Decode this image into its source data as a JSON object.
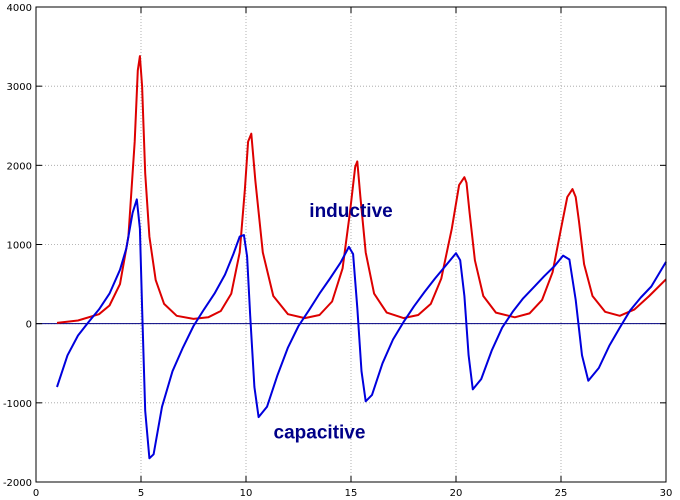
{
  "chart_data": {
    "type": "line",
    "title": "",
    "xlabel": "",
    "ylabel": "",
    "xlim": [
      0,
      30
    ],
    "ylim": [
      -2000,
      4000
    ],
    "grid": true,
    "x_ticks": [
      0,
      5,
      10,
      15,
      20,
      25,
      30
    ],
    "y_ticks": [
      -2000,
      -1000,
      0,
      1000,
      2000,
      3000,
      4000
    ],
    "x_tick_labels": [
      "0",
      "5",
      "10",
      "15",
      "20",
      "25",
      "30"
    ],
    "y_tick_labels": [
      "-2000",
      "-1000",
      "0",
      "1000",
      "2000",
      "3000",
      "4000"
    ],
    "annotations": [
      {
        "text": "inductive",
        "x": 15,
        "y": 1350
      },
      {
        "text": "capacitive",
        "x": 13.5,
        "y": -1450
      }
    ],
    "zero_line": {
      "y": 0,
      "color": "#000080"
    },
    "series": [
      {
        "color": "#dd0000",
        "x": [
          1,
          2,
          3,
          3.5,
          4,
          4.4,
          4.7,
          4.85,
          4.95,
          5.05,
          5.2,
          5.4,
          5.7,
          6.1,
          6.7,
          7.5,
          8.2,
          8.8,
          9.3,
          9.7,
          9.95,
          10.1,
          10.25,
          10.45,
          10.8,
          11.3,
          12,
          12.8,
          13.5,
          14.1,
          14.6,
          14.95,
          15.2,
          15.3,
          15.45,
          15.7,
          16.1,
          16.7,
          17.5,
          18.2,
          18.8,
          19.3,
          19.8,
          20.15,
          20.4,
          20.5,
          20.65,
          20.9,
          21.3,
          21.9,
          22.8,
          23.5,
          24.1,
          24.6,
          25,
          25.3,
          25.55,
          25.7,
          25.85,
          26.1,
          26.5,
          27.1,
          27.8,
          28.5,
          29.2,
          30
        ],
        "y": [
          10,
          40,
          120,
          230,
          500,
          1100,
          2300,
          3200,
          3380,
          3000,
          1900,
          1100,
          550,
          250,
          100,
          60,
          80,
          160,
          380,
          900,
          1700,
          2300,
          2400,
          1800,
          900,
          350,
          120,
          70,
          110,
          280,
          700,
          1400,
          1980,
          2050,
          1600,
          900,
          380,
          140,
          70,
          110,
          250,
          570,
          1200,
          1750,
          1850,
          1780,
          1400,
          800,
          350,
          140,
          80,
          130,
          300,
          650,
          1200,
          1600,
          1700,
          1600,
          1300,
          750,
          350,
          150,
          100,
          180,
          350,
          560
        ]
      },
      {
        "color": "#0000dd",
        "x": [
          1,
          1.5,
          2,
          2.5,
          3,
          3.5,
          4,
          4.3,
          4.6,
          4.8,
          4.95,
          5.05,
          5.2,
          5.4,
          5.6,
          6,
          6.5,
          7,
          7.5,
          8,
          8.5,
          9,
          9.4,
          9.7,
          9.9,
          10.05,
          10.2,
          10.4,
          10.6,
          11,
          11.5,
          12,
          12.5,
          13,
          13.5,
          14,
          14.5,
          14.9,
          15.1,
          15.3,
          15.5,
          15.7,
          16,
          16.5,
          17,
          17.5,
          18,
          18.5,
          19,
          19.5,
          20,
          20.2,
          20.4,
          20.6,
          20.8,
          21.2,
          21.7,
          22.2,
          22.7,
          23.2,
          23.7,
          24.2,
          24.7,
          25.1,
          25.4,
          25.7,
          26,
          26.3,
          26.8,
          27.3,
          27.8,
          28.3,
          28.8,
          29.3,
          30
        ],
        "y": [
          -800,
          -400,
          -150,
          20,
          180,
          380,
          680,
          950,
          1400,
          1570,
          1200,
          200,
          -1100,
          -1700,
          -1650,
          -1050,
          -600,
          -300,
          -30,
          180,
          380,
          620,
          880,
          1100,
          1120,
          850,
          100,
          -800,
          -1180,
          -1050,
          -650,
          -300,
          -30,
          170,
          380,
          570,
          770,
          970,
          880,
          200,
          -600,
          -980,
          -900,
          -500,
          -200,
          20,
          220,
          400,
          570,
          730,
          890,
          800,
          350,
          -400,
          -830,
          -700,
          -340,
          -50,
          150,
          320,
          460,
          600,
          730,
          860,
          810,
          300,
          -400,
          -720,
          -560,
          -280,
          -50,
          170,
          330,
          470,
          780
        ]
      }
    ]
  }
}
